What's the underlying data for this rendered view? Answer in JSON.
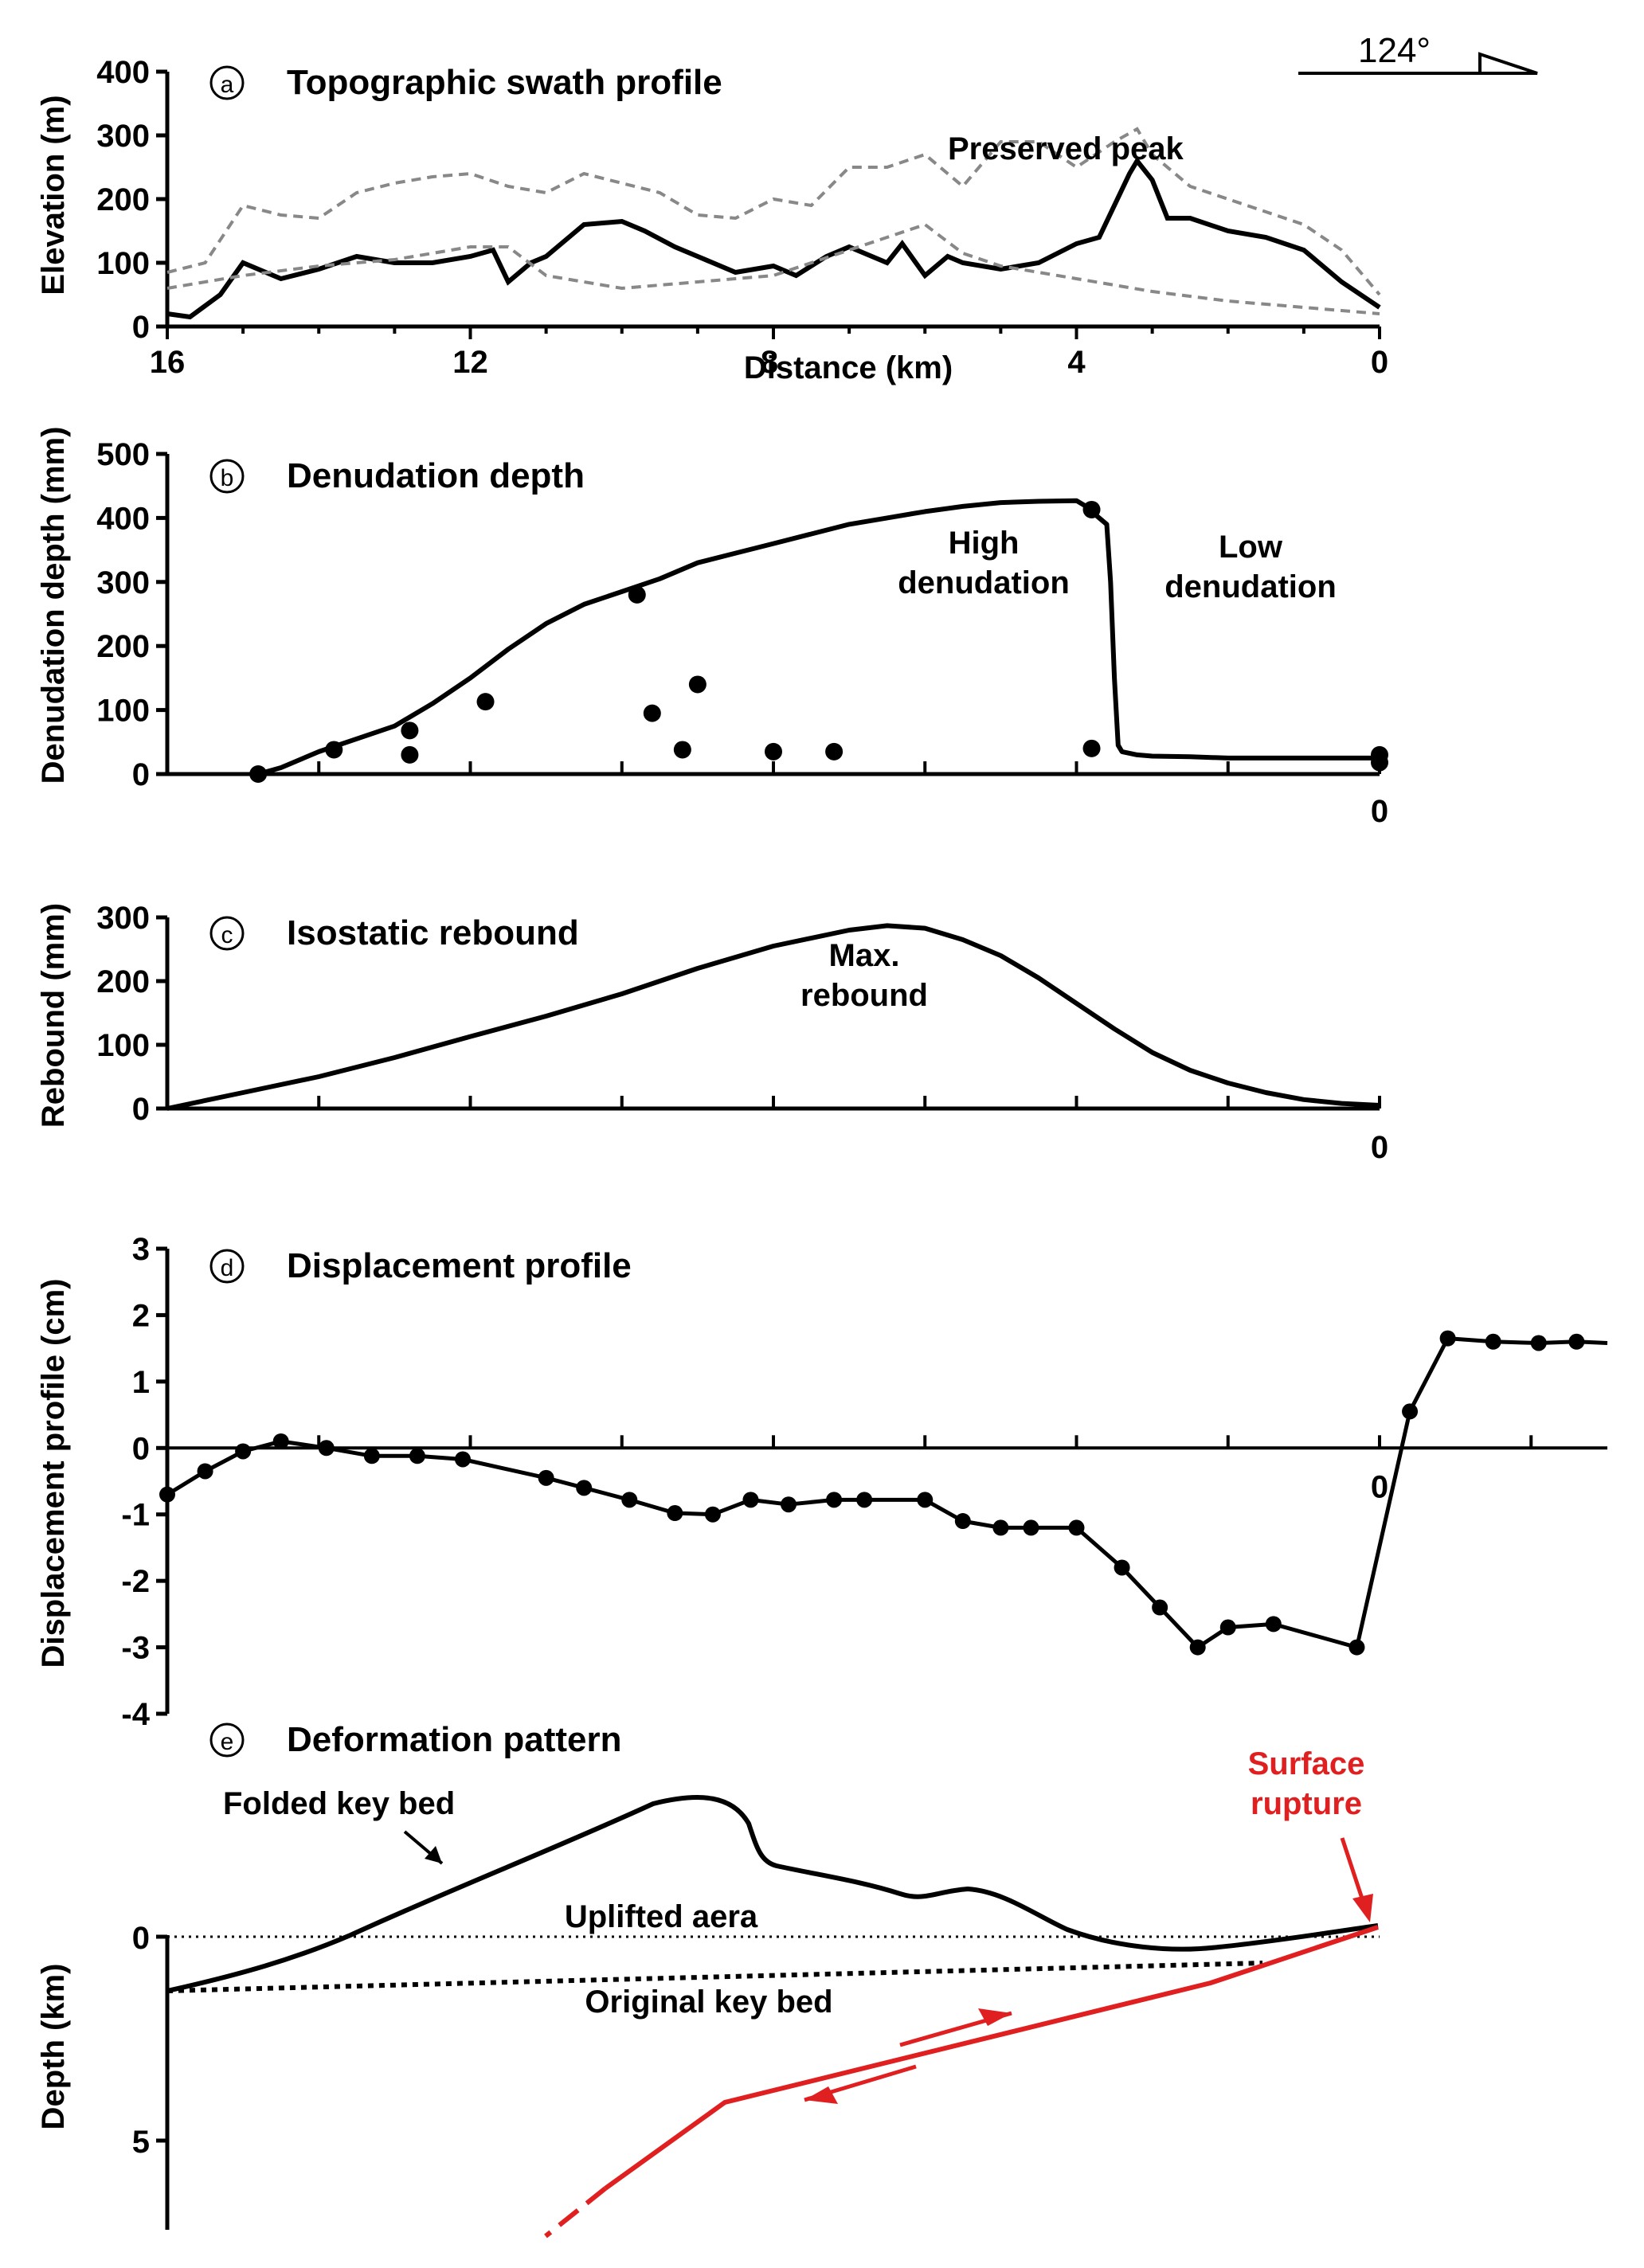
{
  "orientation": {
    "label": "124°"
  },
  "panels": [
    {
      "letter": "a",
      "title": "Topographic swath profile"
    },
    {
      "letter": "b",
      "title": "Denudation depth"
    },
    {
      "letter": "c",
      "title": "Isostatic rebound"
    },
    {
      "letter": "d",
      "title": "Displacement profile"
    },
    {
      "letter": "e",
      "title": "Deformation pattern"
    }
  ],
  "chart_data": [
    {
      "type": "line",
      "title": "Topographic swath profile",
      "xlabel": "Distance (km)",
      "ylabel": "Elevation (m)",
      "xlim": [
        16,
        0
      ],
      "ylim": [
        0,
        400
      ],
      "xticks": [
        "16",
        "12",
        "8",
        "4",
        "0"
      ],
      "yticks": [
        "0",
        "100",
        "200",
        "300",
        "400"
      ],
      "annotations": [
        "Preserved peak"
      ],
      "series": [
        {
          "style": "solid",
          "x": [
            16,
            15.7,
            15.3,
            15.0,
            14.5,
            14.0,
            13.5,
            13.0,
            12.5,
            12.0,
            11.7,
            11.5,
            11.2,
            11.0,
            10.5,
            10.0,
            9.7,
            9.3,
            9.0,
            8.5,
            8.0,
            7.7,
            7.3,
            7.0,
            6.5,
            6.3,
            6.0,
            5.7,
            5.5,
            5.0,
            4.5,
            4.0,
            3.7,
            3.3,
            3.2,
            3.0,
            2.8,
            2.5,
            2.0,
            1.5,
            1.0,
            0.5,
            0
          ],
          "y": [
            20,
            15,
            50,
            100,
            75,
            90,
            110,
            100,
            100,
            110,
            120,
            70,
            100,
            110,
            160,
            165,
            150,
            125,
            110,
            85,
            95,
            80,
            110,
            125,
            100,
            130,
            80,
            110,
            100,
            90,
            100,
            130,
            140,
            240,
            260,
            230,
            170,
            170,
            150,
            140,
            120,
            70,
            30
          ]
        },
        {
          "style": "dashed",
          "x": [
            16,
            15.5,
            15.0,
            14.5,
            14.0,
            13.5,
            13.0,
            12.5,
            12.0,
            11.5,
            11.0,
            10.5,
            10.0,
            9.5,
            9.0,
            8.5,
            8.0,
            7.5,
            7.0,
            6.5,
            6.0,
            5.5,
            5.0,
            4.5,
            4.0,
            3.5,
            3.2,
            3.0,
            2.5,
            2.0,
            1.5,
            1.0,
            0.5,
            0
          ],
          "y": [
            85,
            100,
            190,
            175,
            170,
            210,
            225,
            235,
            240,
            220,
            210,
            240,
            225,
            210,
            175,
            170,
            200,
            190,
            250,
            250,
            270,
            220,
            290,
            290,
            250,
            290,
            310,
            270,
            220,
            200,
            180,
            160,
            120,
            50
          ]
        },
        {
          "style": "dashed",
          "x": [
            16,
            15.0,
            14.0,
            13.0,
            12.0,
            11.5,
            11.0,
            10.0,
            9.0,
            8.0,
            7.0,
            6.5,
            6.0,
            5.5,
            5.0,
            4.5,
            4.0,
            3.0,
            2.0,
            1.0,
            0
          ],
          "y": [
            60,
            80,
            95,
            105,
            125,
            125,
            80,
            60,
            70,
            80,
            120,
            140,
            160,
            115,
            95,
            85,
            75,
            55,
            40,
            30,
            20
          ]
        }
      ]
    },
    {
      "type": "line",
      "title": "Denudation depth",
      "ylabel": "Denudation depth (mm)",
      "ylim": [
        0,
        500
      ],
      "yticks": [
        "0",
        "100",
        "200",
        "300",
        "400",
        "500"
      ],
      "xtick_labels": [
        "0"
      ],
      "annotations": [
        "High denudation",
        "Low denudation"
      ],
      "curve": {
        "x": [
          14.8,
          14.5,
          14.0,
          13.5,
          13.0,
          12.5,
          12.0,
          11.5,
          11.0,
          10.5,
          10.0,
          9.5,
          9.0,
          8.5,
          8.0,
          7.5,
          7.0,
          6.5,
          6.0,
          5.5,
          5.0,
          4.5,
          4.0,
          3.9,
          3.6,
          3.55,
          3.5,
          3.45,
          3.4,
          3.2,
          3.0,
          2.5,
          2.0,
          1.0,
          0
        ],
        "y": [
          0,
          10,
          35,
          55,
          75,
          110,
          150,
          195,
          235,
          265,
          285,
          305,
          330,
          345,
          360,
          375,
          390,
          400,
          410,
          418,
          424,
          426,
          427,
          420,
          390,
          300,
          150,
          45,
          35,
          30,
          28,
          27,
          25,
          25,
          25
        ]
      },
      "points": {
        "x": [
          14.8,
          13.8,
          12.8,
          12.8,
          11.8,
          9.8,
          9.6,
          9.2,
          9.0,
          8.0,
          7.2,
          3.8,
          3.8,
          0,
          0
        ],
        "y": [
          0,
          38,
          68,
          30,
          113,
          280,
          95,
          38,
          140,
          35,
          35,
          413,
          40,
          30,
          18
        ]
      }
    },
    {
      "type": "line",
      "title": "Isostatic rebound",
      "ylabel": "Rebound (mm)",
      "ylim": [
        0,
        300
      ],
      "yticks": [
        "0",
        "100",
        "200",
        "300"
      ],
      "xtick_labels": [
        "0"
      ],
      "annotations": [
        "Max. rebound"
      ],
      "curve": {
        "x": [
          16,
          15.0,
          14.0,
          13.0,
          12.0,
          11.0,
          10.0,
          9.0,
          8.0,
          7.0,
          6.5,
          6.0,
          5.5,
          5.0,
          4.5,
          4.0,
          3.5,
          3.0,
          2.5,
          2.0,
          1.5,
          1.0,
          0.5,
          0
        ],
        "y": [
          0,
          25,
          50,
          80,
          113,
          145,
          180,
          220,
          255,
          280,
          287,
          283,
          265,
          240,
          205,
          165,
          125,
          88,
          60,
          40,
          25,
          14,
          8,
          5
        ]
      }
    },
    {
      "type": "line",
      "title": "Displacement profile",
      "ylabel": "Displacement profile (cm)",
      "ylim": [
        -4,
        3
      ],
      "yticks": [
        "-4",
        "-3",
        "-2",
        "-1",
        "0",
        "1",
        "2",
        "3"
      ],
      "xtick_labels": [
        "0"
      ],
      "points": {
        "x": [
          16,
          15.5,
          15.0,
          14.5,
          13.9,
          13.3,
          12.7,
          12.1,
          11.0,
          10.5,
          9.9,
          9.3,
          8.8,
          8.3,
          7.8,
          7.2,
          6.8,
          6.0,
          5.5,
          5.0,
          4.6,
          4.0,
          3.4,
          2.9,
          2.4,
          2.0,
          1.4,
          0.3,
          -0.4,
          -0.9,
          -1.5,
          -2.1,
          -2.6
        ],
        "y": [
          -0.7,
          -0.35,
          -0.05,
          0.1,
          0.0,
          -0.12,
          -0.12,
          -0.17,
          -0.45,
          -0.6,
          -0.78,
          -0.98,
          -1.0,
          -0.78,
          -0.85,
          -0.78,
          -0.78,
          -0.78,
          -1.1,
          -1.2,
          -1.2,
          -1.2,
          -1.8,
          -2.4,
          -3.0,
          -2.7,
          -2.65,
          -3.0,
          0.55,
          1.65,
          1.6,
          1.58,
          1.6
        ]
      }
    },
    {
      "type": "line",
      "title": "Deformation pattern",
      "ylabel": "Depth (km)",
      "yticks": [
        "0",
        "5"
      ],
      "annotations": [
        "Folded key bed",
        "Uplifted aera",
        "Original key bed",
        "Surface rupture"
      ]
    }
  ],
  "colors": {
    "main": "#000000",
    "swath_dashed": "#888888",
    "fault": "#e02020"
  }
}
